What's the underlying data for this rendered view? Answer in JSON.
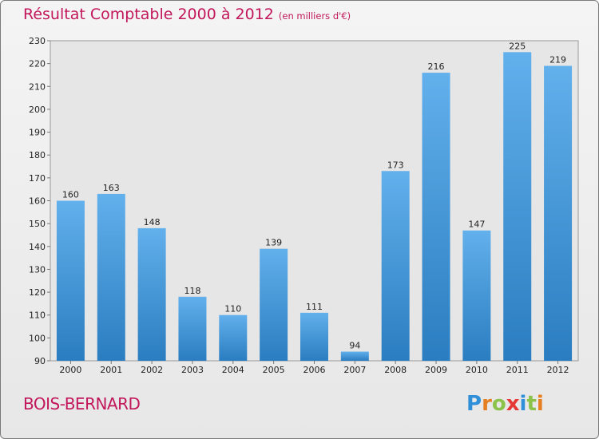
{
  "header": {
    "title": "Résultat Comptable 2000 à 2012",
    "subtitle": "(en milliers d'€)"
  },
  "footer": {
    "place": "BOIS-BERNARD",
    "logo_text": "Proxiti"
  },
  "colors": {
    "title": "#c2185b",
    "bar_top": "#62b0ec",
    "bar_bottom": "#2a7dc0",
    "logo_letters": [
      "#2f8fd8",
      "#e67e22",
      "#8bc34a",
      "#e53935",
      "#2f8fd8",
      "#8bc34a",
      "#e67e22"
    ]
  },
  "chart_data": {
    "type": "bar",
    "title": "Résultat Comptable 2000 à 2012",
    "subtitle": "(en milliers d'€)",
    "categories": [
      "2000",
      "2001",
      "2002",
      "2003",
      "2004",
      "2005",
      "2006",
      "2007",
      "2008",
      "2009",
      "2010",
      "2011",
      "2012"
    ],
    "values": [
      160,
      163,
      148,
      118,
      110,
      139,
      111,
      94,
      173,
      216,
      147,
      225,
      219
    ],
    "ylim": [
      90,
      230
    ],
    "yticks": [
      90,
      100,
      110,
      120,
      130,
      140,
      150,
      160,
      170,
      180,
      190,
      200,
      210,
      220,
      230
    ],
    "grid": false,
    "data_labels": true
  }
}
